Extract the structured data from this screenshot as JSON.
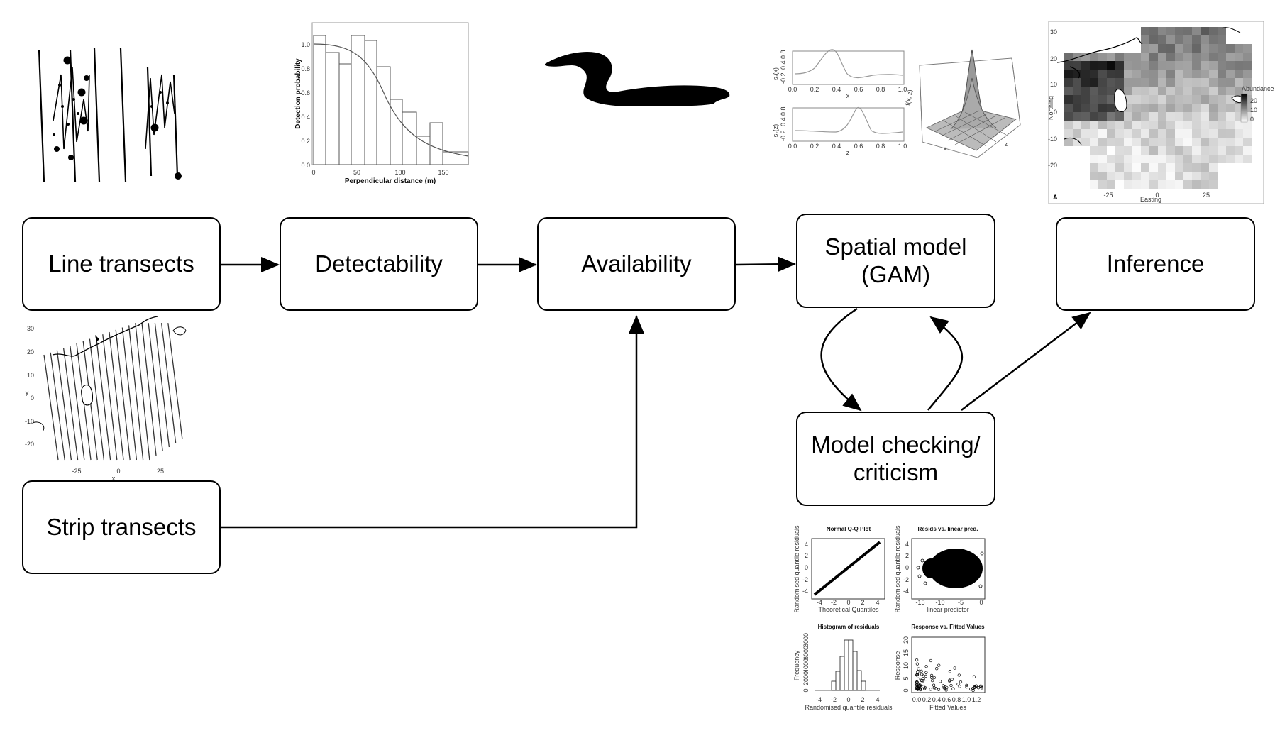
{
  "nodes": {
    "line_transects": "Line transects",
    "detectability": "Detectability",
    "availability": "Availability",
    "spatial_model": "Spatial model\n(GAM)",
    "inference": "Inference",
    "model_checking": "Model checking/\ncriticism",
    "strip_transects": "Strip transects"
  },
  "detection_plot": {
    "ylabel": "Detection probability",
    "xlabel": "Perpendicular distance (m)",
    "xticks": [
      "0",
      "50",
      "100",
      "150"
    ],
    "yticks": [
      "0.0",
      "0.2",
      "0.4",
      "0.6",
      "0.8",
      "1.0"
    ]
  },
  "smooth_plots": {
    "top_ylabel": "s₁(x)",
    "top_xlabel": "x",
    "bottom_ylabel": "s₂(z)",
    "bottom_xlabel": "z",
    "xticks": [
      "0.0",
      "0.2",
      "0.4",
      "0.6",
      "0.8",
      "1.0"
    ],
    "yticks": [
      "-0.2",
      "0.4",
      "0.8"
    ],
    "surface_zlabel": "f(x, z)",
    "surface_xlabel": "x",
    "surface_ylabel": "z"
  },
  "abundance_map": {
    "legend_title": "Abundance",
    "legend_ticks": [
      "20",
      "10",
      "0"
    ],
    "ylabel": "Northing",
    "xlabel": "Easting",
    "panel": "A",
    "yticks": [
      "30",
      "20",
      "10",
      "0",
      "-10",
      "-20"
    ],
    "xticks": [
      "-25",
      "0",
      "25"
    ]
  },
  "transect_map": {
    "ylabel": "y",
    "xlabel": "x",
    "yticks": [
      "30",
      "20",
      "10",
      "0",
      "-10",
      "-20"
    ],
    "xticks": [
      "-25",
      "0",
      "25"
    ]
  },
  "diagnostics": {
    "qq_title": "Normal Q-Q Plot",
    "qq_xlabel": "Theoretical Quantiles",
    "qq_ylabel": "Randomised quantile residuals",
    "rl_title": "Resids vs. linear pred.",
    "rl_xlabel": "linear predictor",
    "rl_ylabel": "Randomised quantile residuals",
    "hist_title": "Histogram of residuals",
    "hist_xlabel": "Randomised quantile residuals",
    "hist_ylabel": "Frequency",
    "rf_title": "Response vs. Fitted Values",
    "rf_xlabel": "Fitted Values",
    "rf_ylabel": "Response",
    "qq_xticks": [
      "-4",
      "-2",
      "0",
      "2",
      "4"
    ],
    "qq_yticks": [
      "-4",
      "-2",
      "0",
      "2",
      "4"
    ],
    "rl_xticks": [
      "-15",
      "-10",
      "-5",
      "0"
    ],
    "hist_xticks": [
      "-4",
      "-2",
      "0",
      "2",
      "4"
    ],
    "hist_yticks": [
      "0",
      "2000",
      "4000",
      "6000",
      "8000"
    ],
    "rf_xticks": [
      "0.0",
      "0.2",
      "0.4",
      "0.6",
      "0.8",
      "1.0",
      "1.2"
    ],
    "rf_yticks": [
      "0",
      "5",
      "10",
      "15",
      "20"
    ]
  },
  "icons": [
    "duck-silhouette-icon"
  ]
}
